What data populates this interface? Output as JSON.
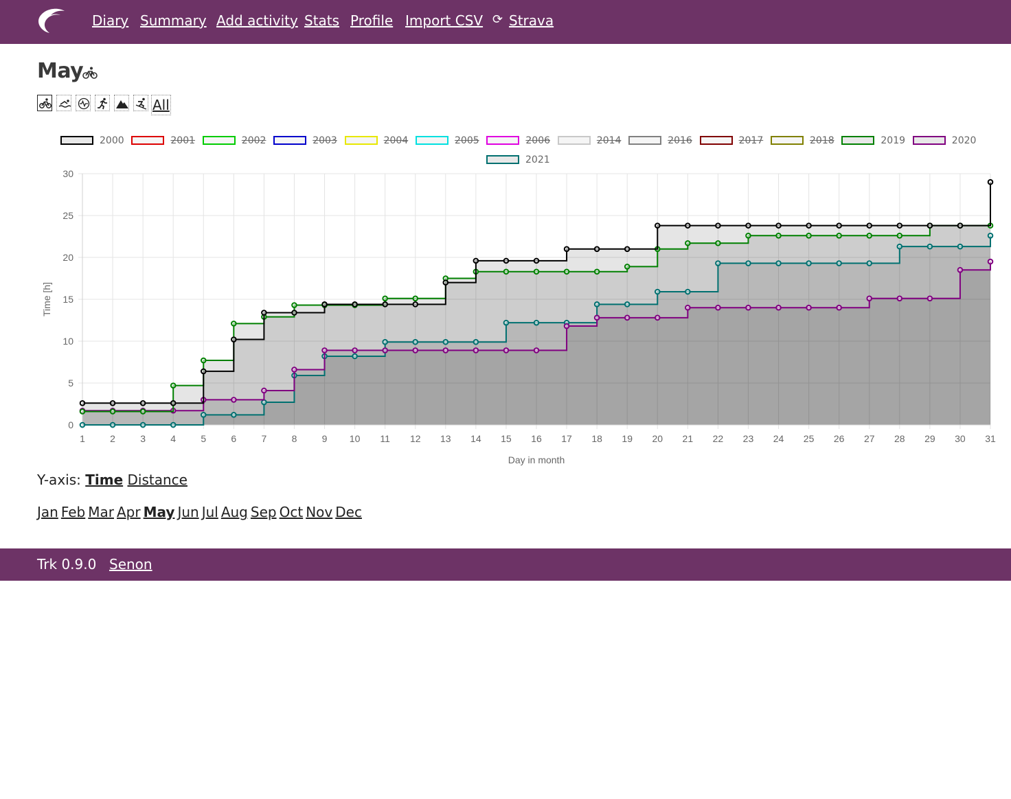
{
  "nav": {
    "items": [
      "Diary",
      "Summary",
      "Add activity",
      "Stats",
      "Profile",
      "Import CSV",
      "Strava"
    ],
    "sync_icon": "sync-icon",
    "logo_icon": "feather-logo-icon"
  },
  "page": {
    "title": "May",
    "title_icon": "bike-icon",
    "sport_icons": [
      "bike-icon",
      "swim-icon",
      "heart-rate-icon",
      "run-icon",
      "mountain-icon",
      "ski-icon"
    ],
    "all_label": "All"
  },
  "colors": {
    "brand": "#6d3366",
    "series_2000": "#000000",
    "series_2019": "#008000",
    "series_2020": "#800080",
    "series_2021": "#007070"
  },
  "chart_data": {
    "type": "line",
    "step": true,
    "ylabel": "Time [h]",
    "xlabel": "Day in month",
    "xlim": [
      1,
      31
    ],
    "ylim": [
      0,
      30
    ],
    "x_ticks": [
      "1",
      "2",
      "3",
      "4",
      "5",
      "6",
      "7",
      "8",
      "9",
      "10",
      "11",
      "12",
      "13",
      "14",
      "15",
      "16",
      "17",
      "18",
      "19",
      "20",
      "21",
      "22",
      "23",
      "24",
      "25",
      "26",
      "27",
      "28",
      "29",
      "30",
      "31"
    ],
    "y_ticks": [
      "0",
      "5",
      "10",
      "15",
      "20",
      "25",
      "30"
    ],
    "grid": true,
    "legend_position": "top",
    "legend": [
      {
        "name": "2000",
        "color": "#000000",
        "hidden": false
      },
      {
        "name": "2001",
        "color": "#dd0000",
        "hidden": true
      },
      {
        "name": "2002",
        "color": "#00cc00",
        "hidden": true
      },
      {
        "name": "2003",
        "color": "#0000cc",
        "hidden": true
      },
      {
        "name": "2004",
        "color": "#e8e800",
        "hidden": true
      },
      {
        "name": "2005",
        "color": "#00e0e0",
        "hidden": true
      },
      {
        "name": "2006",
        "color": "#e000e0",
        "hidden": true
      },
      {
        "name": "2014",
        "color": "#c8c8c8",
        "hidden": true
      },
      {
        "name": "2016",
        "color": "#808080",
        "hidden": true
      },
      {
        "name": "2017",
        "color": "#800000",
        "hidden": true
      },
      {
        "name": "2018",
        "color": "#808000",
        "hidden": true
      },
      {
        "name": "2019",
        "color": "#008000",
        "hidden": false
      },
      {
        "name": "2020",
        "color": "#800080",
        "hidden": false
      },
      {
        "name": "2021",
        "color": "#007070",
        "hidden": false
      }
    ],
    "series": [
      {
        "name": "2000",
        "color": "#000000",
        "values": [
          2.6,
          2.6,
          2.6,
          2.6,
          6.4,
          10.2,
          13.4,
          13.4,
          14.4,
          14.4,
          14.4,
          14.4,
          17.0,
          19.6,
          19.6,
          19.6,
          21.0,
          21.0,
          21.0,
          23.8,
          23.8,
          23.8,
          23.8,
          23.8,
          23.8,
          23.8,
          23.8,
          23.8,
          23.8,
          23.8,
          29.0
        ]
      },
      {
        "name": "2019",
        "color": "#008000",
        "values": [
          1.6,
          1.6,
          1.6,
          4.7,
          7.7,
          12.1,
          12.9,
          14.3,
          14.3,
          14.3,
          15.1,
          15.1,
          17.5,
          18.3,
          18.3,
          18.3,
          18.3,
          18.3,
          18.9,
          21.0,
          21.7,
          21.7,
          22.6,
          22.6,
          22.6,
          22.6,
          22.6,
          22.6,
          23.8,
          23.8,
          23.8
        ]
      },
      {
        "name": "2020",
        "color": "#800080",
        "values": [
          1.7,
          1.7,
          1.7,
          1.7,
          3.0,
          3.0,
          4.1,
          6.6,
          8.9,
          8.9,
          8.9,
          8.9,
          8.9,
          8.9,
          8.9,
          8.9,
          11.8,
          12.8,
          12.8,
          12.8,
          14.0,
          14.0,
          14.0,
          14.0,
          14.0,
          14.0,
          15.1,
          15.1,
          15.1,
          18.5,
          19.5
        ]
      },
      {
        "name": "2021",
        "color": "#007070",
        "values": [
          0.0,
          0.0,
          0.0,
          0.0,
          1.2,
          1.2,
          2.7,
          5.9,
          8.2,
          8.2,
          9.9,
          9.9,
          9.9,
          9.9,
          12.2,
          12.2,
          12.2,
          14.4,
          14.4,
          15.9,
          15.9,
          19.3,
          19.3,
          19.3,
          19.3,
          19.3,
          19.3,
          21.3,
          21.3,
          21.3,
          22.6
        ]
      }
    ]
  },
  "yaxis": {
    "label": "Y-axis:",
    "options": [
      "Time",
      "Distance"
    ],
    "current": "Time"
  },
  "months": {
    "items": [
      "Jan",
      "Feb",
      "Mar",
      "Apr",
      "May",
      "Jun",
      "Jul",
      "Aug",
      "Sep",
      "Oct",
      "Nov",
      "Dec"
    ],
    "current": "May"
  },
  "footer": {
    "version": "Trk 0.9.0",
    "link": "Senon"
  }
}
